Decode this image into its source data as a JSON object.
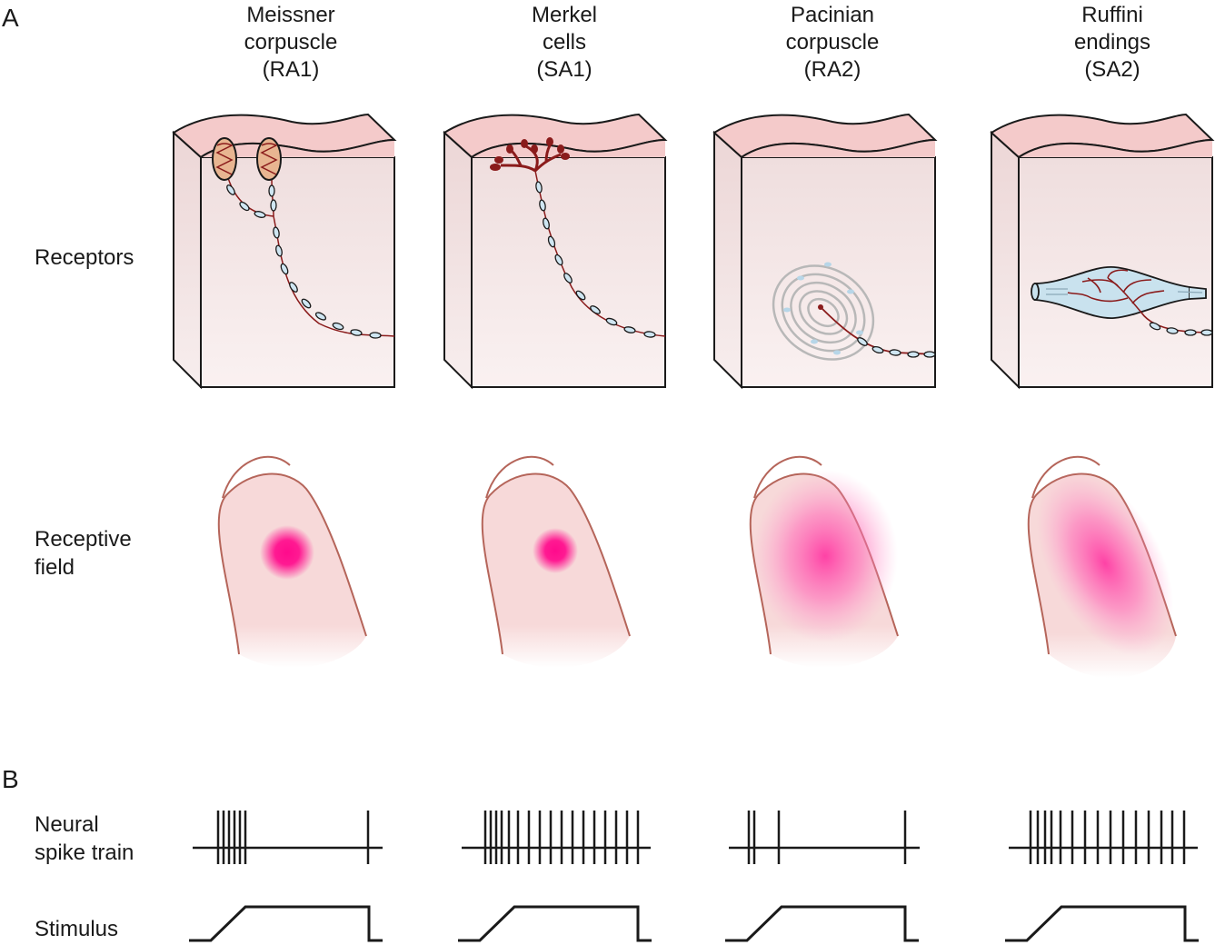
{
  "panel_a_label": "A",
  "panel_b_label": "B",
  "columns": [
    {
      "line1": "Meissner",
      "line2": "corpuscle",
      "line3": "(RA1)"
    },
    {
      "line1": "Merkel",
      "line2": "cells",
      "line3": "(SA1)"
    },
    {
      "line1": "Pacinian",
      "line2": "corpuscle",
      "line3": "(RA2)"
    },
    {
      "line1": "Ruffini",
      "line2": "endings",
      "line3": "(SA2)"
    }
  ],
  "rows": {
    "receptors": "Receptors",
    "receptive_field_line1": "Receptive",
    "receptive_field_line2": "field",
    "spike_line1": "Neural",
    "spike_line2": "spike train",
    "stimulus": "Stimulus"
  },
  "colors": {
    "skin_top": "#f2c6c6",
    "tissue": "#f4e4e4",
    "nerve_fill": "#cfe6f2",
    "nerve_line": "#8a1b1b",
    "receptive_hotspot": "#ff1493",
    "finger_outline": "#b5655a",
    "finger_fill": "#f7d9d9"
  }
}
